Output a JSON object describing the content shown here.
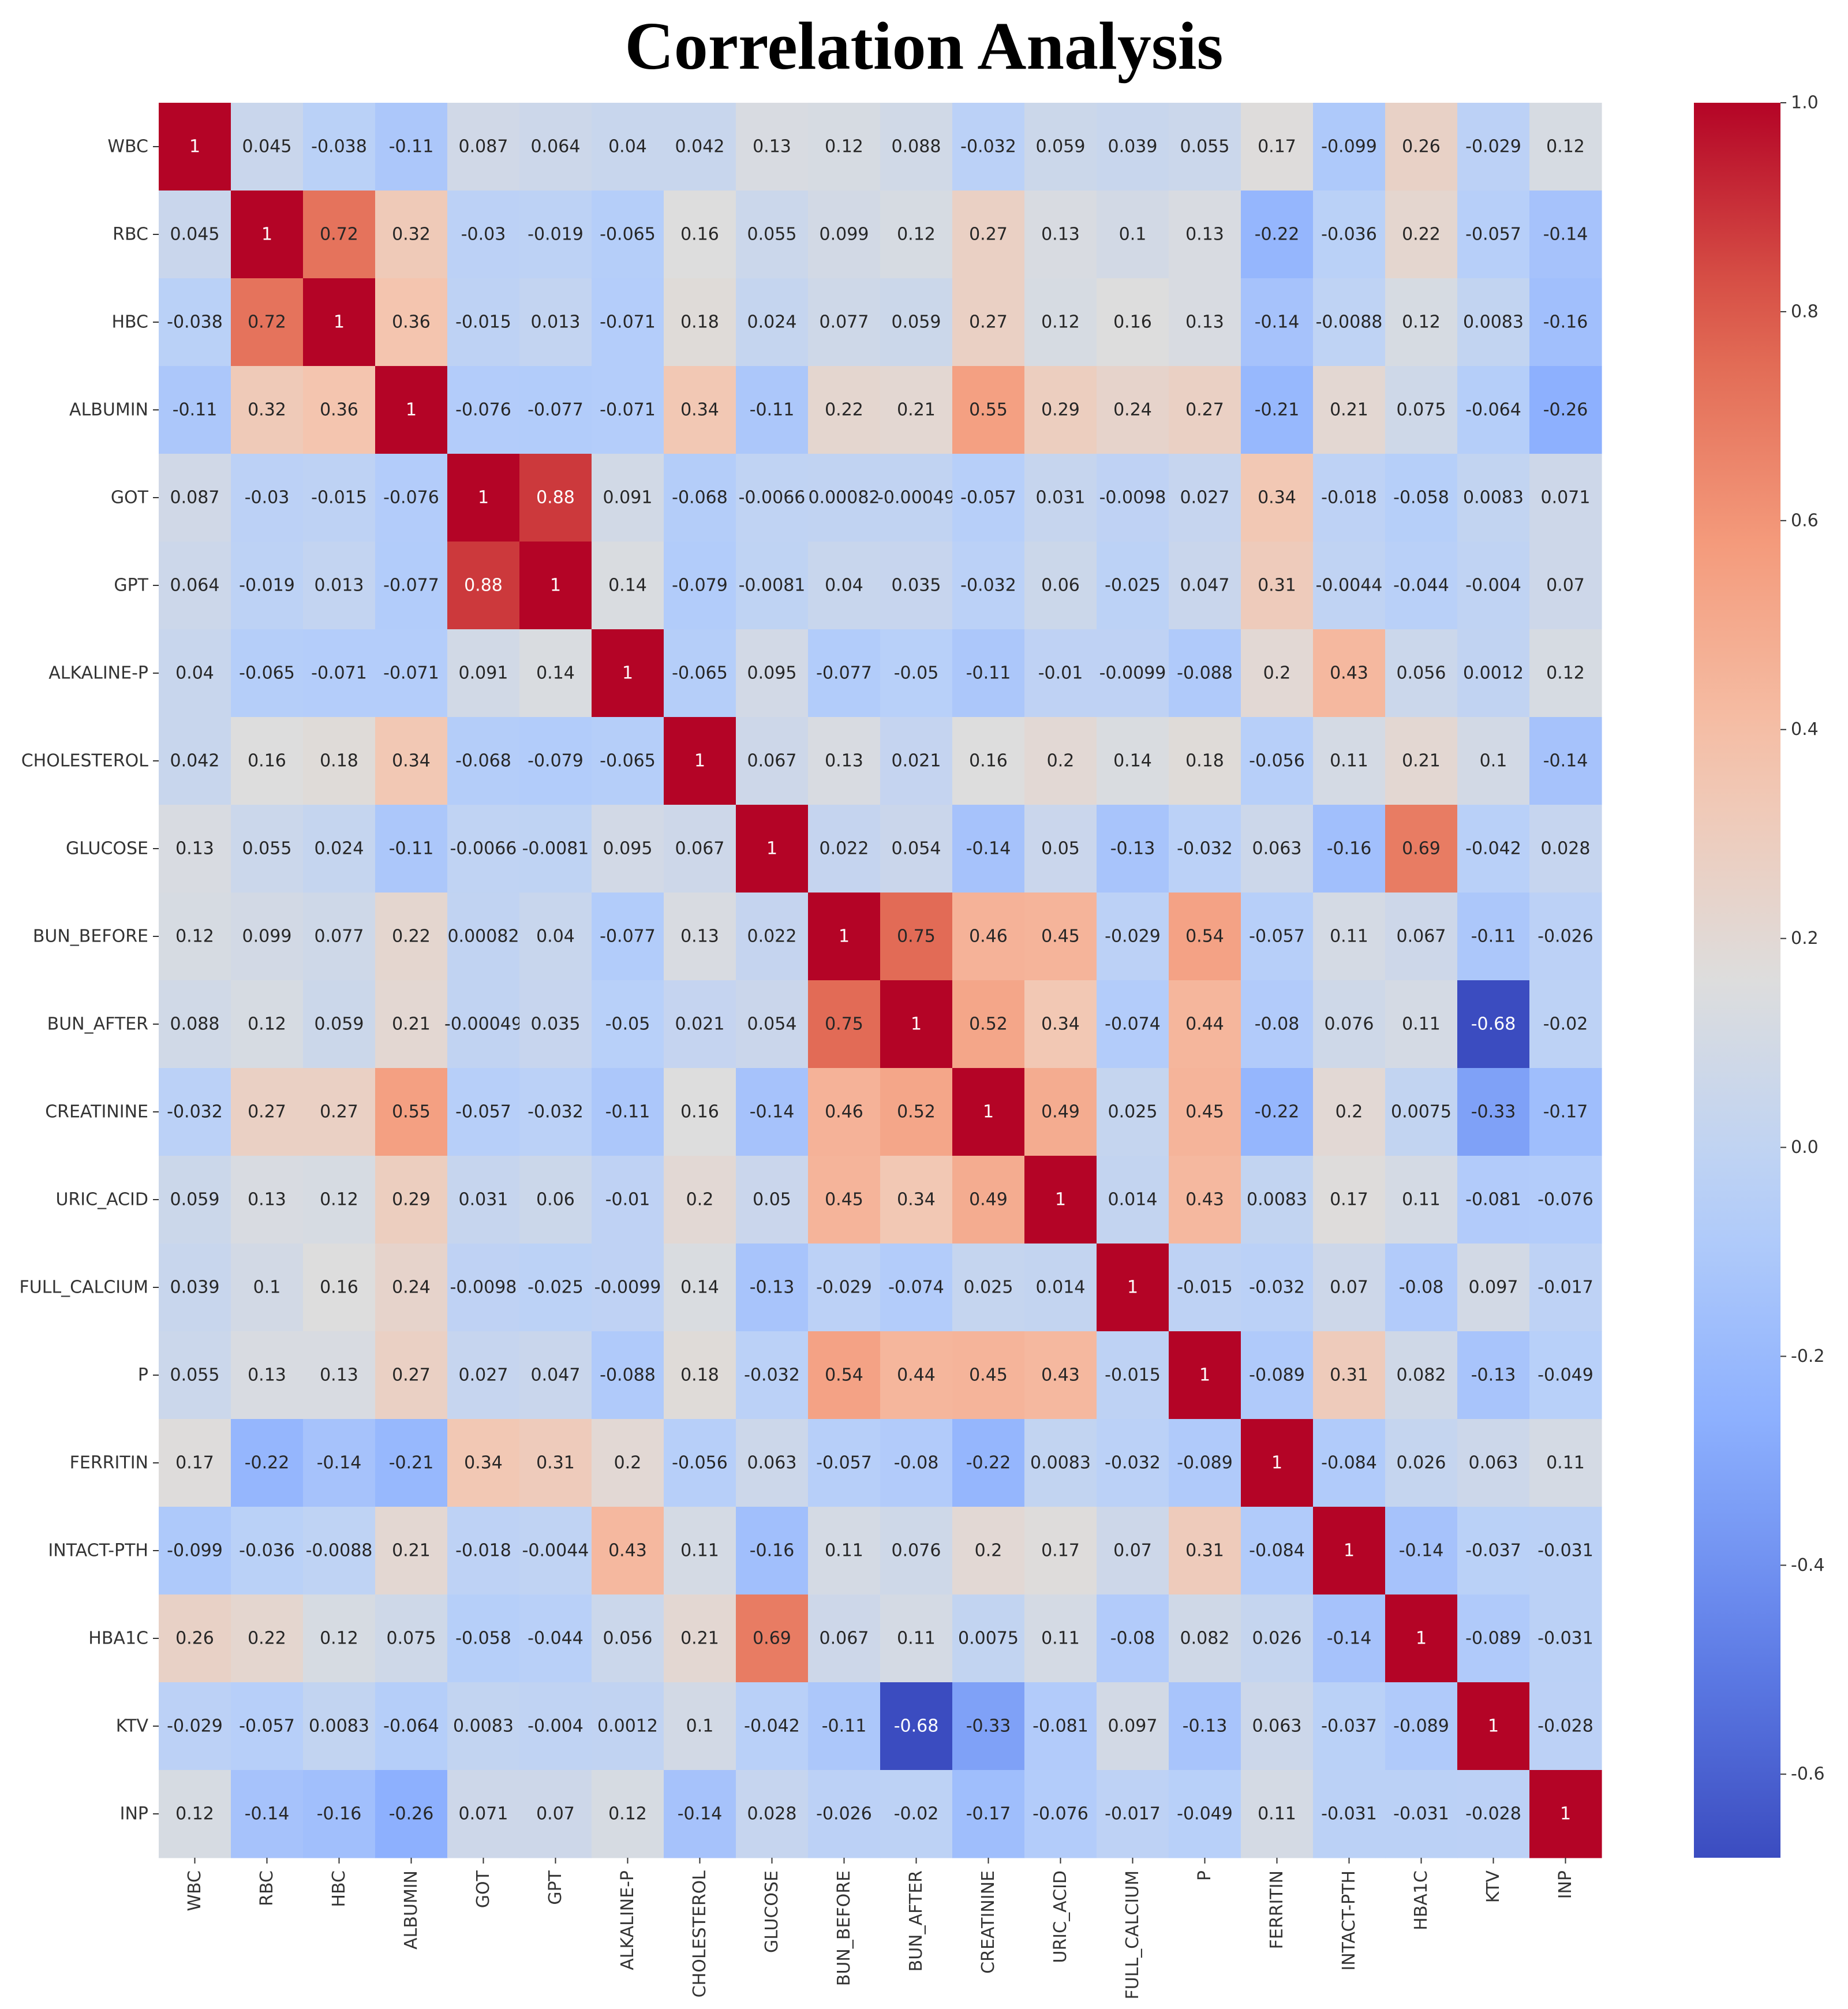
{
  "chart_data": {
    "type": "heatmap",
    "title": "Correlation Analysis",
    "labels": [
      "WBC",
      "RBC",
      "HBC",
      "ALBUMIN",
      "GOT",
      "GPT",
      "ALKALINE-P",
      "CHOLESTEROL",
      "GLUCOSE",
      "BUN_BEFORE",
      "BUN_AFTER",
      "CREATININE",
      "URIC_ACID",
      "FULL_CALCIUM",
      "P",
      "FERRITIN",
      "INTACT-PTH",
      "HBA1C",
      "KTV",
      "INP"
    ],
    "matrix": [
      [
        1,
        0.045,
        -0.038,
        -0.11,
        0.087,
        0.064,
        0.04,
        0.042,
        0.13,
        0.12,
        0.088,
        -0.032,
        0.059,
        0.039,
        0.055,
        0.17,
        -0.099,
        0.26,
        -0.029,
        0.12
      ],
      [
        0.045,
        1,
        0.72,
        0.32,
        -0.03,
        -0.019,
        -0.065,
        0.16,
        0.055,
        0.099,
        0.12,
        0.27,
        0.13,
        0.1,
        0.13,
        -0.22,
        -0.036,
        0.22,
        -0.057,
        -0.14
      ],
      [
        -0.038,
        0.72,
        1,
        0.36,
        -0.015,
        0.013,
        -0.071,
        0.18,
        0.024,
        0.077,
        0.059,
        0.27,
        0.12,
        0.16,
        0.13,
        -0.14,
        -0.0088,
        0.12,
        0.0083,
        -0.16
      ],
      [
        -0.11,
        0.32,
        0.36,
        1,
        -0.076,
        -0.077,
        -0.071,
        0.34,
        -0.11,
        0.22,
        0.21,
        0.55,
        0.29,
        0.24,
        0.27,
        -0.21,
        0.21,
        0.075,
        -0.064,
        -0.26
      ],
      [
        0.087,
        -0.03,
        -0.015,
        -0.076,
        1,
        0.88,
        0.091,
        -0.068,
        -0.0066,
        0.00082,
        -0.00049,
        -0.057,
        0.031,
        -0.0098,
        0.027,
        0.34,
        -0.018,
        -0.058,
        0.0083,
        0.071
      ],
      [
        0.064,
        -0.019,
        0.013,
        -0.077,
        0.88,
        1,
        0.14,
        -0.079,
        -0.0081,
        0.04,
        0.035,
        -0.032,
        0.06,
        -0.025,
        0.047,
        0.31,
        -0.0044,
        -0.044,
        -0.004,
        0.07
      ],
      [
        0.04,
        -0.065,
        -0.071,
        -0.071,
        0.091,
        0.14,
        1,
        -0.065,
        0.095,
        -0.077,
        -0.05,
        -0.11,
        -0.01,
        -0.0099,
        -0.088,
        0.2,
        0.43,
        0.056,
        0.0012,
        0.12
      ],
      [
        0.042,
        0.16,
        0.18,
        0.34,
        -0.068,
        -0.079,
        -0.065,
        1,
        0.067,
        0.13,
        0.021,
        0.16,
        0.2,
        0.14,
        0.18,
        -0.056,
        0.11,
        0.21,
        0.1,
        -0.14
      ],
      [
        0.13,
        0.055,
        0.024,
        -0.11,
        -0.0066,
        -0.0081,
        0.095,
        0.067,
        1,
        0.022,
        0.054,
        -0.14,
        0.05,
        -0.13,
        -0.032,
        0.063,
        -0.16,
        0.69,
        -0.042,
        0.028
      ],
      [
        0.12,
        0.099,
        0.077,
        0.22,
        0.00082,
        0.04,
        -0.077,
        0.13,
        0.022,
        1,
        0.75,
        0.46,
        0.45,
        -0.029,
        0.54,
        -0.057,
        0.11,
        0.067,
        -0.11,
        -0.026
      ],
      [
        0.088,
        0.12,
        0.059,
        0.21,
        -0.00049,
        0.035,
        -0.05,
        0.021,
        0.054,
        0.75,
        1,
        0.52,
        0.34,
        -0.074,
        0.44,
        -0.08,
        0.076,
        0.11,
        -0.68,
        -0.02
      ],
      [
        -0.032,
        0.27,
        0.27,
        0.55,
        -0.057,
        -0.032,
        -0.11,
        0.16,
        -0.14,
        0.46,
        0.52,
        1,
        0.49,
        0.025,
        0.45,
        -0.22,
        0.2,
        0.0075,
        -0.33,
        -0.17
      ],
      [
        0.059,
        0.13,
        0.12,
        0.29,
        0.031,
        0.06,
        -0.01,
        0.2,
        0.05,
        0.45,
        0.34,
        0.49,
        1,
        0.014,
        0.43,
        0.0083,
        0.17,
        0.11,
        -0.081,
        -0.076
      ],
      [
        0.039,
        0.1,
        0.16,
        0.24,
        -0.0098,
        -0.025,
        -0.0099,
        0.14,
        -0.13,
        -0.029,
        -0.074,
        0.025,
        0.014,
        1,
        -0.015,
        -0.032,
        0.07,
        -0.08,
        0.097,
        -0.017
      ],
      [
        0.055,
        0.13,
        0.13,
        0.27,
        0.027,
        0.047,
        -0.088,
        0.18,
        -0.032,
        0.54,
        0.44,
        0.45,
        0.43,
        -0.015,
        1,
        -0.089,
        0.31,
        0.082,
        -0.13,
        -0.049
      ],
      [
        0.17,
        -0.22,
        -0.14,
        -0.21,
        0.34,
        0.31,
        0.2,
        -0.056,
        0.063,
        -0.057,
        -0.08,
        -0.22,
        0.0083,
        -0.032,
        -0.089,
        1,
        -0.084,
        0.026,
        0.063,
        0.11
      ],
      [
        -0.099,
        -0.036,
        -0.0088,
        0.21,
        -0.018,
        -0.0044,
        0.43,
        0.11,
        -0.16,
        0.11,
        0.076,
        0.2,
        0.17,
        0.07,
        0.31,
        -0.084,
        1,
        -0.14,
        -0.037,
        -0.031
      ],
      [
        0.26,
        0.22,
        0.12,
        0.075,
        -0.058,
        -0.044,
        0.056,
        0.21,
        0.69,
        0.067,
        0.11,
        0.0075,
        0.11,
        -0.08,
        0.082,
        0.026,
        -0.14,
        1,
        -0.089,
        -0.031
      ],
      [
        -0.029,
        -0.057,
        0.0083,
        -0.064,
        0.0083,
        -0.004,
        0.0012,
        0.1,
        -0.042,
        -0.11,
        -0.68,
        -0.33,
        -0.081,
        0.097,
        -0.13,
        0.063,
        -0.037,
        -0.089,
        1,
        -0.028
      ],
      [
        0.12,
        -0.14,
        -0.16,
        -0.26,
        0.071,
        0.07,
        0.12,
        -0.14,
        0.028,
        -0.026,
        -0.02,
        -0.17,
        -0.076,
        -0.017,
        -0.049,
        0.11,
        -0.031,
        -0.031,
        -0.028,
        1
      ]
    ],
    "cell_text": [
      [
        "1",
        "0.045",
        "-0.038",
        "-0.11",
        "0.087",
        "0.064",
        "0.04",
        "0.042",
        "0.13",
        "0.12",
        "0.088",
        "-0.032",
        "0.059",
        "0.039",
        "0.055",
        "0.17",
        "-0.099",
        "0.26",
        "-0.029",
        "0.12"
      ],
      [
        "0.045",
        "1",
        "0.72",
        "0.32",
        "-0.03",
        "-0.019",
        "-0.065",
        "0.16",
        "0.055",
        "0.099",
        "0.12",
        "0.27",
        "0.13",
        "0.1",
        "0.13",
        "-0.22",
        "-0.036",
        "0.22",
        "-0.057",
        "-0.14"
      ],
      [
        "-0.038",
        "0.72",
        "1",
        "0.36",
        "-0.015",
        "0.013",
        "-0.071",
        "0.18",
        "0.024",
        "0.077",
        "0.059",
        "0.27",
        "0.12",
        "0.16",
        "0.13",
        "-0.14",
        "-0.0088",
        "0.12",
        "0.0083",
        "-0.16"
      ],
      [
        "-0.11",
        "0.32",
        "0.36",
        "1",
        "-0.076",
        "-0.077",
        "-0.071",
        "0.34",
        "-0.11",
        "0.22",
        "0.21",
        "0.55",
        "0.29",
        "0.24",
        "0.27",
        "-0.21",
        "0.21",
        "0.075",
        "-0.064",
        "-0.26"
      ],
      [
        "0.087",
        "-0.03",
        "-0.015",
        "-0.076",
        "1",
        "0.88",
        "0.091",
        "-0.068",
        "-0.0066",
        "0.00082",
        "-0.00049",
        "-0.057",
        "0.031",
        "-0.0098",
        "0.027",
        "0.34",
        "-0.018",
        "-0.058",
        "0.0083",
        "0.071"
      ],
      [
        "0.064",
        "-0.019",
        "0.013",
        "-0.077",
        "0.88",
        "1",
        "0.14",
        "-0.079",
        "-0.0081",
        "0.04",
        "0.035",
        "-0.032",
        "0.06",
        "-0.025",
        "0.047",
        "0.31",
        "-0.0044",
        "-0.044",
        "-0.004",
        "0.07"
      ],
      [
        "0.04",
        "-0.065",
        "-0.071",
        "-0.071",
        "0.091",
        "0.14",
        "1",
        "-0.065",
        "0.095",
        "-0.077",
        "-0.05",
        "-0.11",
        "-0.01",
        "-0.0099",
        "-0.088",
        "0.2",
        "0.43",
        "0.056",
        "0.0012",
        "0.12"
      ],
      [
        "0.042",
        "0.16",
        "0.18",
        "0.34",
        "-0.068",
        "-0.079",
        "-0.065",
        "1",
        "0.067",
        "0.13",
        "0.021",
        "0.16",
        "0.2",
        "0.14",
        "0.18",
        "-0.056",
        "0.11",
        "0.21",
        "0.1",
        "-0.14"
      ],
      [
        "0.13",
        "0.055",
        "0.024",
        "-0.11",
        "-0.0066",
        "-0.0081",
        "0.095",
        "0.067",
        "1",
        "0.022",
        "0.054",
        "-0.14",
        "0.05",
        "-0.13",
        "-0.032",
        "0.063",
        "-0.16",
        "0.69",
        "-0.042",
        "0.028"
      ],
      [
        "0.12",
        "0.099",
        "0.077",
        "0.22",
        "0.00082",
        "0.04",
        "-0.077",
        "0.13",
        "0.022",
        "1",
        "0.75",
        "0.46",
        "0.45",
        "-0.029",
        "0.54",
        "-0.057",
        "0.11",
        "0.067",
        "-0.11",
        "-0.026"
      ],
      [
        "0.088",
        "0.12",
        "0.059",
        "0.21",
        "-0.00049",
        "0.035",
        "-0.05",
        "0.021",
        "0.054",
        "0.75",
        "1",
        "0.52",
        "0.34",
        "-0.074",
        "0.44",
        "-0.08",
        "0.076",
        "0.11",
        "-0.68",
        "-0.02"
      ],
      [
        "-0.032",
        "0.27",
        "0.27",
        "0.55",
        "-0.057",
        "-0.032",
        "-0.11",
        "0.16",
        "-0.14",
        "0.46",
        "0.52",
        "1",
        "0.49",
        "0.025",
        "0.45",
        "-0.22",
        "0.2",
        "0.0075",
        "-0.33",
        "-0.17"
      ],
      [
        "0.059",
        "0.13",
        "0.12",
        "0.29",
        "0.031",
        "0.06",
        "-0.01",
        "0.2",
        "0.05",
        "0.45",
        "0.34",
        "0.49",
        "1",
        "0.014",
        "0.43",
        "0.0083",
        "0.17",
        "0.11",
        "-0.081",
        "-0.076"
      ],
      [
        "0.039",
        "0.1",
        "0.16",
        "0.24",
        "-0.0098",
        "-0.025",
        "-0.0099",
        "0.14",
        "-0.13",
        "-0.029",
        "-0.074",
        "0.025",
        "0.014",
        "1",
        "-0.015",
        "-0.032",
        "0.07",
        "-0.08",
        "0.097",
        "-0.017"
      ],
      [
        "0.055",
        "0.13",
        "0.13",
        "0.27",
        "0.027",
        "0.047",
        "-0.088",
        "0.18",
        "-0.032",
        "0.54",
        "0.44",
        "0.45",
        "0.43",
        "-0.015",
        "1",
        "-0.089",
        "0.31",
        "0.082",
        "-0.13",
        "-0.049"
      ],
      [
        "0.17",
        "-0.22",
        "-0.14",
        "-0.21",
        "0.34",
        "0.31",
        "0.2",
        "-0.056",
        "0.063",
        "-0.057",
        "-0.08",
        "-0.22",
        "0.0083",
        "-0.032",
        "-0.089",
        "1",
        "-0.084",
        "0.026",
        "0.063",
        "0.11"
      ],
      [
        "-0.099",
        "-0.036",
        "-0.0088",
        "0.21",
        "-0.018",
        "-0.0044",
        "0.43",
        "0.11",
        "-0.16",
        "0.11",
        "0.076",
        "0.2",
        "0.17",
        "0.07",
        "0.31",
        "-0.084",
        "1",
        "-0.14",
        "-0.037",
        "-0.031"
      ],
      [
        "0.26",
        "0.22",
        "0.12",
        "0.075",
        "-0.058",
        "-0.044",
        "0.056",
        "0.21",
        "0.69",
        "0.067",
        "0.11",
        "0.0075",
        "0.11",
        "-0.08",
        "0.082",
        "0.026",
        "-0.14",
        "1",
        "-0.089",
        "-0.031"
      ],
      [
        "-0.029",
        "-0.057",
        "0.0083",
        "-0.064",
        "0.0083",
        "-0.004",
        "0.0012",
        "0.1",
        "-0.042",
        "-0.11",
        "-0.68",
        "-0.33",
        "-0.081",
        "0.097",
        "-0.13",
        "0.063",
        "-0.037",
        "-0.089",
        "1",
        "-0.028"
      ],
      [
        "0.12",
        "-0.14",
        "-0.16",
        "-0.26",
        "0.071",
        "0.07",
        "0.12",
        "-0.14",
        "0.028",
        "-0.026",
        "-0.02",
        "-0.17",
        "-0.076",
        "-0.017",
        "-0.049",
        "0.11",
        "-0.031",
        "-0.031",
        "-0.028",
        "1"
      ]
    ],
    "colorscale": "coolwarm",
    "vmin": -0.68,
    "vmax": 1.0,
    "colorbar_ticks": [
      1.0,
      0.8,
      0.6,
      0.4,
      0.2,
      0.0,
      -0.2,
      -0.4,
      -0.6
    ],
    "colorbar_tick_labels": [
      "1.0",
      "0.8",
      "0.6",
      "0.4",
      "0.2",
      "0.0",
      "-0.2",
      "-0.4",
      "-0.6"
    ],
    "colorbar_placement": "right"
  }
}
